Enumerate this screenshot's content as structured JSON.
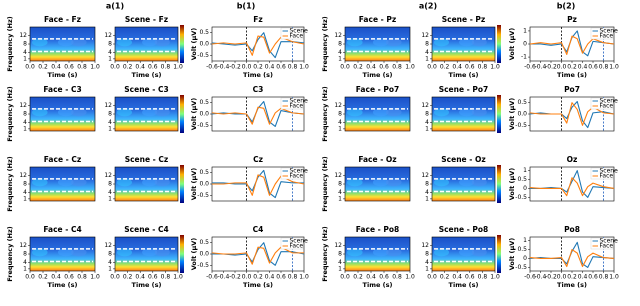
{
  "panel_labels": [
    "a(1)",
    "b(1)",
    "a(2)",
    "b(2)"
  ],
  "chart_data": [
    {
      "type": "heatmap",
      "title": "Face - Fz",
      "ylabel": "Frequency (Hz)",
      "xlabel": "Time (s)",
      "ylim": [
        0,
        16
      ],
      "yticks": [
        1,
        4,
        8,
        12
      ],
      "xlim": [
        0,
        1
      ],
      "xticks": [
        {
          "value": 0,
          "label": "0.0"
        },
        0.2,
        0.4,
        0.6,
        0.8,
        {
          "value": 1,
          "label": "1.0"
        }
      ]
    },
    {
      "type": "heatmap",
      "title": "Scene - Fz",
      "xlabel": "Time (s)",
      "colorbar": true,
      "ylim": [
        0,
        16
      ],
      "yticks": [
        1,
        4,
        8,
        12
      ],
      "xlim": [
        0,
        1
      ],
      "xticks": [
        {
          "value": 0,
          "label": "0.0"
        },
        0.2,
        0.4,
        0.6,
        0.8,
        {
          "value": 1,
          "label": "1.0"
        }
      ]
    },
    {
      "type": "line",
      "title": "Fz",
      "ylabel": "Volt (μV)",
      "xlabel": "Time (s)",
      "legend": "upper right",
      "xlim": [
        -0.6,
        1.0
      ],
      "xticks": [
        -0.6,
        -0.4,
        -0.2,
        {
          "value": 0,
          "label": "0.0"
        },
        0.2,
        0.4,
        0.6,
        0.8,
        {
          "value": 1,
          "label": "1.0"
        }
      ],
      "ylim": [
        -0.75,
        0.75
      ],
      "yticks": [
        -0.5,
        {
          "value": 0,
          "label": "0.0"
        },
        0.5
      ],
      "vlines": [
        {
          "x": 0,
          "color": "#000000"
        },
        {
          "x": 0.8,
          "color": "#1f5fbf"
        }
      ],
      "x": [
        -0.6,
        -0.4,
        -0.2,
        0,
        0.1,
        0.2,
        0.3,
        0.4,
        0.5,
        0.6,
        0.8,
        1.0
      ],
      "series": [
        {
          "name": "Scene",
          "color": "#1f77b4",
          "values": [
            0.05,
            0,
            -0.05,
            0,
            -0.3,
            0.2,
            0.5,
            -0.3,
            -0.6,
            0.1,
            0.1,
            0.05
          ]
        },
        {
          "name": "Face",
          "color": "#ff7f0e",
          "values": [
            0,
            0.05,
            0,
            0.05,
            -0.5,
            0.35,
            0.3,
            -0.4,
            0,
            0.3,
            0.1,
            0
          ]
        }
      ]
    },
    {
      "type": "heatmap",
      "title": "Face - C3",
      "ylabel": "Frequency (Hz)",
      "ylim": [
        0,
        16
      ],
      "yticks": [
        1,
        4,
        8,
        12
      ]
    },
    {
      "type": "heatmap",
      "title": "Scene - C3",
      "colorbar": true,
      "ylim": [
        0,
        16
      ],
      "yticks": [
        1,
        4,
        8,
        12
      ]
    },
    {
      "type": "line",
      "title": "C3",
      "ylabel": "Volt (μV)",
      "legend": "upper right",
      "xlim": [
        -0.6,
        1.0
      ],
      "ylim": [
        -0.75,
        0.75
      ],
      "yticks": [
        -0.5,
        {
          "value": 0,
          "label": "0.0"
        },
        0.5
      ],
      "vlines": [
        {
          "x": 0,
          "color": "#000000"
        },
        {
          "x": 0.8,
          "color": "#1f5fbf"
        }
      ],
      "x": [
        -0.6,
        -0.4,
        -0.2,
        0,
        0.1,
        0.2,
        0.3,
        0.4,
        0.5,
        0.6,
        0.8,
        1.0
      ],
      "series": [
        {
          "name": "Scene",
          "color": "#1f77b4",
          "values": [
            0,
            0.05,
            0,
            0,
            -0.35,
            0.25,
            0.55,
            -0.35,
            -0.55,
            0.15,
            0.05,
            0
          ]
        },
        {
          "name": "Face",
          "color": "#ff7f0e",
          "values": [
            0.05,
            0,
            0.05,
            0,
            -0.45,
            0.3,
            0.25,
            -0.45,
            0.05,
            0.25,
            0.05,
            0
          ]
        }
      ]
    },
    {
      "type": "heatmap",
      "title": "Face - Cz",
      "ylabel": "Frequency (Hz)",
      "ylim": [
        0,
        16
      ],
      "yticks": [
        1,
        4,
        8,
        12
      ]
    },
    {
      "type": "heatmap",
      "title": "Scene - Cz",
      "colorbar": true,
      "ylim": [
        0,
        16
      ],
      "yticks": [
        1,
        4,
        8,
        12
      ]
    },
    {
      "type": "line",
      "title": "Cz",
      "ylabel": "Volt (μV)",
      "legend": "upper right",
      "xlim": [
        -0.6,
        1.0
      ],
      "ylim": [
        -0.75,
        0.75
      ],
      "yticks": [
        -0.5,
        {
          "value": 0,
          "label": "0.0"
        },
        0.5
      ],
      "vlines": [
        {
          "x": 0,
          "color": "#000000"
        },
        {
          "x": 0.8,
          "color": "#1f5fbf"
        }
      ],
      "x": [
        -0.6,
        -0.4,
        -0.2,
        0,
        0.1,
        0.2,
        0.3,
        0.4,
        0.5,
        0.6,
        0.8,
        1.0
      ],
      "series": [
        {
          "name": "Scene",
          "color": "#1f77b4",
          "values": [
            0.05,
            0.05,
            0,
            0,
            -0.3,
            0.3,
            0.6,
            -0.4,
            -0.6,
            0.1,
            0.05,
            0.05
          ]
        },
        {
          "name": "Face",
          "color": "#ff7f0e",
          "values": [
            0,
            0,
            0.05,
            0.05,
            -0.5,
            0.4,
            0.3,
            -0.5,
            0,
            0.35,
            0.1,
            0
          ]
        }
      ]
    },
    {
      "type": "heatmap",
      "title": "Face - C4",
      "ylabel": "Frequency (Hz)",
      "xlabel": "Time (s)",
      "ylim": [
        0,
        16
      ],
      "yticks": [
        1,
        4,
        8,
        12
      ],
      "xlim": [
        0,
        1
      ],
      "xticks": [
        {
          "value": 0,
          "label": "0.0"
        },
        0.2,
        0.4,
        0.6,
        0.8,
        {
          "value": 1,
          "label": "1.0"
        }
      ]
    },
    {
      "type": "heatmap",
      "title": "Scene - C4",
      "xlabel": "Time (s)",
      "colorbar": true,
      "ylim": [
        0,
        16
      ],
      "yticks": [
        1,
        4,
        8,
        12
      ],
      "xlim": [
        0,
        1
      ],
      "xticks": [
        {
          "value": 0,
          "label": "0.0"
        },
        0.2,
        0.4,
        0.6,
        0.8,
        {
          "value": 1,
          "label": "1.0"
        }
      ]
    },
    {
      "type": "line",
      "title": "C4",
      "ylabel": "Volt (μV)",
      "xlabel": "Time (s)",
      "legend": "upper right",
      "xlim": [
        -0.6,
        1.0
      ],
      "xticks": [
        -0.6,
        -0.4,
        -0.2,
        {
          "value": 0,
          "label": "0.0"
        },
        0.2,
        0.4,
        0.6,
        0.8,
        {
          "value": 1,
          "label": "1.0"
        }
      ],
      "ylim": [
        -0.75,
        0.75
      ],
      "yticks": [
        -0.5,
        {
          "value": 0,
          "label": "0.0"
        },
        0.5
      ],
      "vlines": [
        {
          "x": 0,
          "color": "#000000"
        },
        {
          "x": 0.8,
          "color": "#1f5fbf"
        }
      ],
      "x": [
        -0.6,
        -0.4,
        -0.2,
        0,
        0.1,
        0.2,
        0.3,
        0.4,
        0.5,
        0.6,
        0.8,
        1.0
      ],
      "series": [
        {
          "name": "Scene",
          "color": "#1f77b4",
          "values": [
            0,
            0,
            -0.05,
            0,
            -0.35,
            0.2,
            0.5,
            -0.3,
            -0.5,
            0.1,
            0.1,
            0
          ]
        },
        {
          "name": "Face",
          "color": "#ff7f0e",
          "values": [
            0.05,
            0,
            0,
            0.05,
            -0.45,
            0.3,
            0.25,
            -0.4,
            0.05,
            0.3,
            0.05,
            0.05
          ]
        }
      ]
    },
    {
      "type": "heatmap",
      "title": "Face - Pz",
      "ylabel": "Frequency (Hz)",
      "xlabel": "Time (s)",
      "ylim": [
        0,
        16
      ],
      "yticks": [
        1,
        4,
        8,
        12
      ],
      "xlim": [
        0,
        1
      ],
      "xticks": [
        {
          "value": 0,
          "label": "0.0"
        },
        0.2,
        0.4,
        0.6,
        0.8,
        {
          "value": 1,
          "label": "1.0"
        }
      ]
    },
    {
      "type": "heatmap",
      "title": "Scene - Pz",
      "xlabel": "Time (s)",
      "colorbar": true,
      "ylim": [
        0,
        16
      ],
      "yticks": [
        1,
        4,
        8,
        12
      ],
      "xlim": [
        0,
        1
      ],
      "xticks": [
        {
          "value": 0,
          "label": "0.0"
        },
        0.2,
        0.4,
        0.6,
        0.8,
        {
          "value": 1,
          "label": "1.0"
        }
      ]
    },
    {
      "type": "line",
      "title": "Pz",
      "ylabel": "Volt (μV)",
      "xlabel": "Time (s)",
      "legend": "upper right",
      "xlim": [
        -0.6,
        1.0
      ],
      "xticks": [
        -0.6,
        -0.4,
        -0.2,
        {
          "value": 0,
          "label": "0.0"
        },
        0.2,
        0.4,
        0.6,
        0.8,
        {
          "value": 1,
          "label": "1.0"
        }
      ],
      "ylim": [
        -1.3,
        1.3
      ],
      "yticks": [
        -1,
        0,
        1
      ],
      "vlines": [
        {
          "x": 0,
          "color": "#000000"
        },
        {
          "x": 0.8,
          "color": "#1f5fbf"
        }
      ],
      "x": [
        -0.6,
        -0.4,
        -0.2,
        0,
        0.1,
        0.2,
        0.3,
        0.4,
        0.5,
        0.6,
        0.8,
        1.0
      ],
      "series": [
        {
          "name": "Scene",
          "color": "#1f77b4",
          "values": [
            0,
            0,
            -0.1,
            0,
            -0.6,
            0.5,
            1.0,
            -0.6,
            -0.9,
            0.2,
            0.1,
            0
          ]
        },
        {
          "name": "Face",
          "color": "#ff7f0e",
          "values": [
            0,
            0.1,
            0,
            0.1,
            -0.8,
            0.6,
            0.4,
            -0.7,
            0,
            0.4,
            0.1,
            0
          ]
        }
      ]
    },
    {
      "type": "heatmap",
      "title": "Face - Po7",
      "ylabel": "Frequency (Hz)",
      "ylim": [
        0,
        16
      ],
      "yticks": [
        1,
        4,
        8,
        12
      ]
    },
    {
      "type": "heatmap",
      "title": "Scene - Po7",
      "colorbar": true,
      "ylim": [
        0,
        16
      ],
      "yticks": [
        1,
        4,
        8,
        12
      ]
    },
    {
      "type": "line",
      "title": "Po7",
      "ylabel": "Volt (μV)",
      "legend": "upper right",
      "xlim": [
        -0.6,
        1.0
      ],
      "ylim": [
        -0.75,
        0.75
      ],
      "yticks": [
        -0.5,
        {
          "value": 0,
          "label": "0.0"
        },
        0.5
      ],
      "vlines": [
        {
          "x": 0,
          "color": "#000000"
        },
        {
          "x": 0.8,
          "color": "#1f5fbf"
        }
      ],
      "x": [
        -0.6,
        -0.4,
        -0.2,
        0,
        0.1,
        0.2,
        0.3,
        0.4,
        0.5,
        0.6,
        0.8,
        1.0
      ],
      "series": [
        {
          "name": "Scene",
          "color": "#1f77b4",
          "values": [
            0,
            0.05,
            0,
            0,
            -0.2,
            0.3,
            0.55,
            -0.3,
            -0.6,
            0.05,
            0.1,
            0
          ]
        },
        {
          "name": "Face",
          "color": "#ff7f0e",
          "values": [
            0.05,
            0,
            0,
            0,
            -0.4,
            0.5,
            0.2,
            -0.5,
            0.1,
            0.3,
            0.05,
            0
          ]
        }
      ]
    },
    {
      "type": "heatmap",
      "title": "Face - Oz",
      "ylabel": "Frequency (Hz)",
      "ylim": [
        0,
        16
      ],
      "yticks": [
        1,
        4,
        8,
        12
      ]
    },
    {
      "type": "heatmap",
      "title": "Scene - Oz",
      "colorbar": true,
      "ylim": [
        0,
        16
      ],
      "yticks": [
        1,
        4,
        8,
        12
      ]
    },
    {
      "type": "line",
      "title": "Oz",
      "ylabel": "Volt (μV)",
      "legend": "upper right",
      "xlim": [
        -0.6,
        1.0
      ],
      "ylim": [
        -0.7,
        1.2
      ],
      "yticks": [
        -0.5,
        0,
        0.5,
        1
      ],
      "vlines": [
        {
          "x": 0,
          "color": "#000000"
        },
        {
          "x": 0.8,
          "color": "#1f5fbf"
        }
      ],
      "x": [
        -0.6,
        -0.4,
        -0.2,
        0,
        0.1,
        0.2,
        0.3,
        0.4,
        0.5,
        0.6,
        0.8,
        1.0
      ],
      "series": [
        {
          "name": "Scene",
          "color": "#1f77b4",
          "values": [
            0,
            0,
            0.05,
            0,
            -0.2,
            0.4,
            1.0,
            -0.2,
            -0.5,
            0.1,
            0.05,
            0
          ]
        },
        {
          "name": "Face",
          "color": "#ff7f0e",
          "values": [
            0.05,
            0,
            0,
            0,
            -0.4,
            0.6,
            0.3,
            -0.4,
            0.1,
            0.3,
            0.1,
            0
          ]
        }
      ]
    },
    {
      "type": "heatmap",
      "title": "Face - Po8",
      "ylabel": "Frequency (Hz)",
      "xlabel": "Time (s)",
      "ylim": [
        0,
        16
      ],
      "yticks": [
        1,
        4,
        8,
        12
      ],
      "xlim": [
        0,
        1
      ],
      "xticks": [
        {
          "value": 0,
          "label": "0.0"
        },
        0.2,
        0.4,
        0.6,
        0.8,
        {
          "value": 1,
          "label": "1.0"
        }
      ]
    },
    {
      "type": "heatmap",
      "title": "Scene - Po8",
      "xlabel": "Time (s)",
      "colorbar": true,
      "ylim": [
        0,
        16
      ],
      "yticks": [
        1,
        4,
        8,
        12
      ],
      "xlim": [
        0,
        1
      ],
      "xticks": [
        {
          "value": 0,
          "label": "0.0"
        },
        0.2,
        0.4,
        0.6,
        0.8,
        {
          "value": 1,
          "label": "1.0"
        }
      ]
    },
    {
      "type": "line",
      "title": "Po8",
      "ylabel": "Volt (μV)",
      "xlabel": "Time (s)",
      "legend": "upper right",
      "xlim": [
        -0.6,
        1.0
      ],
      "xticks": [
        -0.6,
        -0.4,
        -0.2,
        {
          "value": 0,
          "label": "0.0"
        },
        0.2,
        0.4,
        0.6,
        0.8,
        {
          "value": 1,
          "label": "1.0"
        }
      ],
      "ylim": [
        -0.7,
        1.2
      ],
      "yticks": [
        -0.5,
        0,
        0.5,
        1
      ],
      "vlines": [
        {
          "x": 0,
          "color": "#000000"
        },
        {
          "x": 0.8,
          "color": "#1f5fbf"
        }
      ],
      "x": [
        -0.6,
        -0.4,
        -0.2,
        0,
        0.1,
        0.2,
        0.3,
        0.4,
        0.5,
        0.6,
        0.8,
        1.0
      ],
      "series": [
        {
          "name": "Scene",
          "color": "#1f77b4",
          "values": [
            0,
            0.05,
            0,
            0,
            -0.3,
            0.4,
            0.9,
            -0.3,
            -0.5,
            0.1,
            0.05,
            0
          ]
        },
        {
          "name": "Face",
          "color": "#ff7f0e",
          "values": [
            0.05,
            0,
            0,
            0.05,
            -0.45,
            0.5,
            0.3,
            -0.45,
            0.1,
            0.3,
            0.05,
            0
          ]
        }
      ]
    }
  ]
}
